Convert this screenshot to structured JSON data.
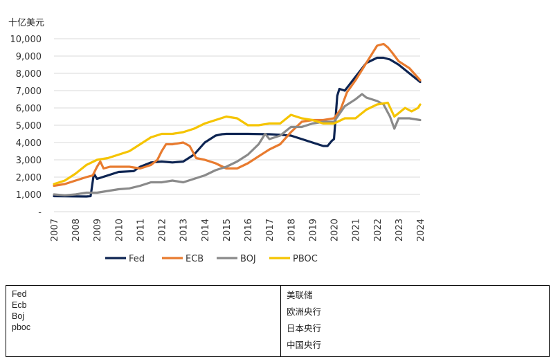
{
  "chart_data": {
    "type": "line",
    "unit_label": "十亿美元",
    "ylim": [
      0,
      10000
    ],
    "yticks": [
      "-",
      "1,000",
      "2,000",
      "3,000",
      "4,000",
      "5,000",
      "6,000",
      "7,000",
      "8,000",
      "9,000",
      "10,000"
    ],
    "xlim": [
      2007.0,
      2024.0
    ],
    "xticks": [
      "2007",
      "2008",
      "2009",
      "2010",
      "2011",
      "2012",
      "2013",
      "2014",
      "2015",
      "2016",
      "2017",
      "2018",
      "2019",
      "2020",
      "2021",
      "2022",
      "2023",
      "2024"
    ],
    "grid": true,
    "legend_position": "bottom",
    "series": [
      {
        "name": "Fed",
        "color": "#0d2452",
        "x": [
          2007.0,
          2008.5,
          2008.7,
          2008.85,
          2009.0,
          2009.5,
          2010.0,
          2010.7,
          2011.0,
          2011.5,
          2012.0,
          2012.5,
          2013.0,
          2013.5,
          2014.0,
          2014.5,
          2014.8,
          2015.0,
          2016.0,
          2017.0,
          2017.5,
          2018.0,
          2018.5,
          2019.0,
          2019.5,
          2019.7,
          2019.9,
          2020.0,
          2020.15,
          2020.25,
          2020.5,
          2021.0,
          2021.5,
          2022.0,
          2022.3,
          2022.6,
          2023.0,
          2023.5,
          2024.0
        ],
        "y": [
          900,
          880,
          900,
          2200,
          1900,
          2100,
          2300,
          2350,
          2600,
          2850,
          2900,
          2850,
          2900,
          3300,
          4000,
          4400,
          4480,
          4500,
          4500,
          4480,
          4450,
          4400,
          4200,
          4000,
          3800,
          3800,
          4100,
          4200,
          6700,
          7100,
          7000,
          7800,
          8600,
          8900,
          8900,
          8800,
          8500,
          8000,
          7500
        ]
      },
      {
        "name": "ECB",
        "color": "#e87b2f",
        "x": [
          2007.0,
          2007.5,
          2008.0,
          2008.5,
          2008.8,
          2009.0,
          2009.15,
          2009.3,
          2009.6,
          2010.0,
          2010.5,
          2011.0,
          2011.5,
          2011.8,
          2012.0,
          2012.2,
          2012.5,
          2013.0,
          2013.3,
          2013.6,
          2014.0,
          2014.5,
          2015.0,
          2015.5,
          2016.0,
          2016.5,
          2017.0,
          2017.5,
          2018.0,
          2018.5,
          2019.0,
          2019.5,
          2020.0,
          2020.3,
          2020.6,
          2021.0,
          2021.5,
          2022.0,
          2022.3,
          2022.5,
          2022.7,
          2023.0,
          2023.5,
          2024.0
        ],
        "y": [
          1500,
          1600,
          1800,
          2000,
          2100,
          2600,
          2900,
          2500,
          2600,
          2600,
          2600,
          2500,
          2700,
          3000,
          3500,
          3900,
          3900,
          4000,
          3800,
          3100,
          3000,
          2800,
          2500,
          2500,
          2800,
          3200,
          3600,
          3900,
          4600,
          5200,
          5300,
          5300,
          5400,
          5900,
          6900,
          7600,
          8600,
          9600,
          9700,
          9500,
          9200,
          8700,
          8300,
          7600
        ]
      },
      {
        "name": "BOJ",
        "color": "#8a8a8a",
        "x": [
          2007.0,
          2007.5,
          2008.0,
          2008.5,
          2009.0,
          2009.5,
          2010.0,
          2010.5,
          2011.0,
          2011.5,
          2012.0,
          2012.5,
          2013.0,
          2013.5,
          2014.0,
          2014.5,
          2015.0,
          2015.5,
          2016.0,
          2016.5,
          2016.8,
          2017.0,
          2017.5,
          2018.0,
          2018.5,
          2019.0,
          2019.5,
          2020.0,
          2020.5,
          2021.0,
          2021.3,
          2021.5,
          2022.0,
          2022.3,
          2022.6,
          2022.8,
          2023.0,
          2023.5,
          2024.0
        ],
        "y": [
          1000,
          950,
          1000,
          1100,
          1100,
          1200,
          1300,
          1350,
          1500,
          1700,
          1700,
          1800,
          1700,
          1900,
          2100,
          2400,
          2600,
          2900,
          3300,
          3900,
          4500,
          4200,
          4400,
          4900,
          4900,
          5100,
          5200,
          5200,
          6100,
          6500,
          6800,
          6600,
          6400,
          6200,
          5500,
          4800,
          5400,
          5400,
          5300
        ]
      },
      {
        "name": "PBOC",
        "color": "#f5c400",
        "x": [
          2007.0,
          2007.5,
          2008.0,
          2008.5,
          2009.0,
          2009.5,
          2010.0,
          2010.5,
          2011.0,
          2011.5,
          2012.0,
          2012.5,
          2013.0,
          2013.5,
          2014.0,
          2014.5,
          2015.0,
          2015.5,
          2016.0,
          2016.5,
          2017.0,
          2017.5,
          2018.0,
          2018.5,
          2019.0,
          2019.5,
          2020.0,
          2020.5,
          2021.0,
          2021.5,
          2022.0,
          2022.5,
          2022.8,
          2023.0,
          2023.3,
          2023.6,
          2023.9,
          2024.0
        ],
        "y": [
          1600,
          1800,
          2200,
          2700,
          3000,
          3100,
          3300,
          3500,
          3900,
          4300,
          4500,
          4500,
          4600,
          4800,
          5100,
          5300,
          5500,
          5400,
          5000,
          5000,
          5100,
          5100,
          5600,
          5400,
          5300,
          5100,
          5100,
          5400,
          5400,
          5900,
          6200,
          6300,
          5500,
          5700,
          6000,
          5800,
          6000,
          6200
        ]
      }
    ]
  },
  "table": {
    "left_lines": [
      "Fed",
      "Ecb",
      "Boj",
      "pboc"
    ],
    "right_lines": [
      "美联储",
      "欧洲央行",
      "日本央行",
      "中国央行"
    ]
  }
}
